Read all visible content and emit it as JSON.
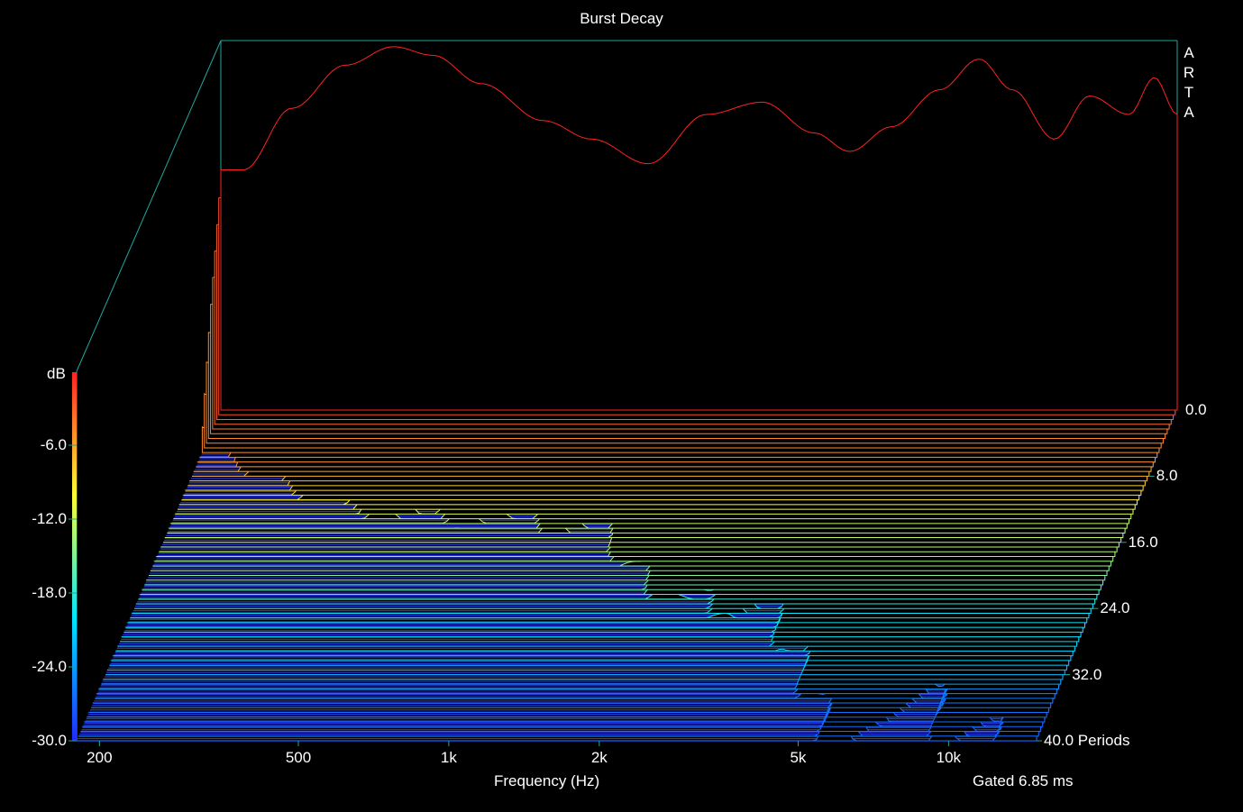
{
  "chart_data": {
    "type": "waterfall",
    "title": "Burst Decay",
    "brand": "ARTA",
    "xlabel": "Frequency (Hz)",
    "x_ticks": [
      {
        "value": 200,
        "label": "200"
      },
      {
        "value": 500,
        "label": "500"
      },
      {
        "value": 1000,
        "label": "1k"
      },
      {
        "value": 2000,
        "label": "2k"
      },
      {
        "value": 5000,
        "label": "5k"
      },
      {
        "value": 10000,
        "label": "10k"
      }
    ],
    "x_range_hz": [
      180,
      15000
    ],
    "x_scale": "log",
    "zlabel": "dB",
    "z_ticks": [
      "0.0",
      "-6.0",
      "-12.0",
      "-18.0",
      "-24.0",
      "-30.0"
    ],
    "z_range_db": [
      -30,
      0
    ],
    "depth_ticks": [
      "8.0",
      "16.0",
      "24.0",
      "32.0",
      "40.0 Periods"
    ],
    "depth_range_periods": [
      0,
      40
    ],
    "gating_note": "Gated 6.85 ms",
    "front_response_db": [
      {
        "hz": 200,
        "db": -10.5
      },
      {
        "hz": 250,
        "db": -5.5
      },
      {
        "hz": 320,
        "db": -2.0
      },
      {
        "hz": 400,
        "db": -0.5
      },
      {
        "hz": 480,
        "db": -1.2
      },
      {
        "hz": 600,
        "db": -3.5
      },
      {
        "hz": 800,
        "db": -6.5
      },
      {
        "hz": 1000,
        "db": -8.0
      },
      {
        "hz": 1300,
        "db": -10.0
      },
      {
        "hz": 1700,
        "db": -6.0
      },
      {
        "hz": 2200,
        "db": -5.0
      },
      {
        "hz": 2800,
        "db": -7.5
      },
      {
        "hz": 3300,
        "db": -9.0
      },
      {
        "hz": 4000,
        "db": -7.0
      },
      {
        "hz": 5000,
        "db": -4.0
      },
      {
        "hz": 6000,
        "db": -1.5
      },
      {
        "hz": 7000,
        "db": -4.0
      },
      {
        "hz": 8500,
        "db": -8.0
      },
      {
        "hz": 10000,
        "db": -4.5
      },
      {
        "hz": 12000,
        "db": -6.0
      },
      {
        "hz": 13500,
        "db": -3.0
      },
      {
        "hz": 15000,
        "db": -6.0
      }
    ],
    "color_scale": [
      "#1e2bff",
      "#00e5ff",
      "#ffff33",
      "#ff2222"
    ],
    "background": "#000000",
    "frame_color": "#1fa8a0",
    "floor_color": "#2e44ff"
  }
}
